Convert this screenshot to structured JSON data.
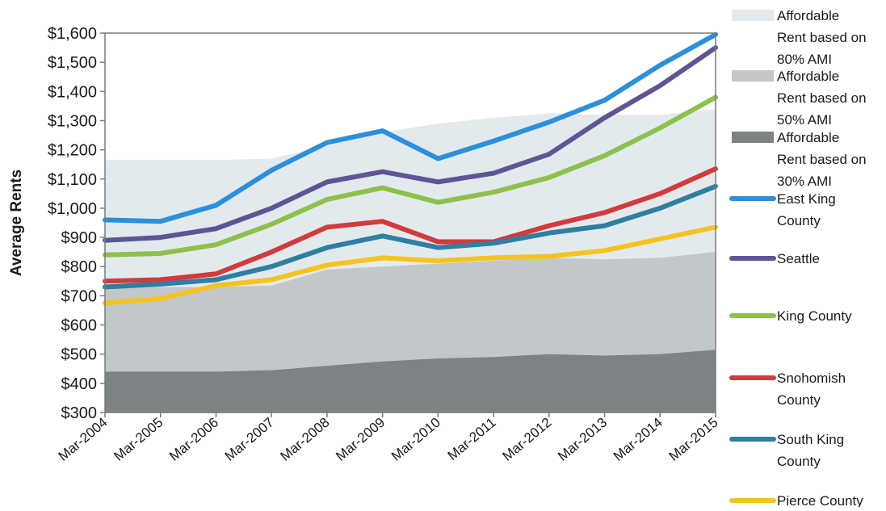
{
  "chart_data": {
    "type": "line",
    "title": "",
    "xlabel": "",
    "ylabel": "Average Rents",
    "ylim": [
      300,
      1600
    ],
    "ytick_labels": [
      "$300",
      "$400",
      "$500",
      "$600",
      "$700",
      "$800",
      "$900",
      "$1,000",
      "$1,100",
      "$1,200",
      "$1,300",
      "$1,400",
      "$1,500",
      "$1,600"
    ],
    "yticks": [
      300,
      400,
      500,
      600,
      700,
      800,
      900,
      1000,
      1100,
      1200,
      1300,
      1400,
      1500,
      1600
    ],
    "categories": [
      "Mar-2004",
      "Mar-2005",
      "Mar-2006",
      "Mar-2007",
      "Mar-2008",
      "Mar-2009",
      "Mar-2010",
      "Mar-2011",
      "Mar-2012",
      "Mar-2013",
      "Mar-2014",
      "Mar-2015"
    ],
    "grid": false,
    "legend_position": "right",
    "areas": [
      {
        "name": "Affordable Rent based on 80% AMI",
        "legend_lines": [
          "Affordable",
          "Rent based on",
          "80% AMI"
        ],
        "color": "#e3eaee",
        "values": [
          1165,
          1165,
          1165,
          1170,
          1215,
          1260,
          1290,
          1310,
          1325,
          1320,
          1320,
          1340
        ]
      },
      {
        "name": "Affordable Rent based on 50% AMI",
        "legend_lines": [
          "Affordable",
          "Rent based on",
          "50% AMI"
        ],
        "color": "#c2c7ca",
        "values": [
          730,
          730,
          730,
          735,
          790,
          800,
          810,
          820,
          830,
          825,
          830,
          850
        ]
      },
      {
        "name": "Affordable Rent based on 30% AMI",
        "legend_lines": [
          "Affordable",
          "Rent based on",
          "30% AMI"
        ],
        "color": "#7d8384",
        "values": [
          440,
          440,
          440,
          445,
          460,
          475,
          485,
          490,
          500,
          495,
          500,
          515
        ]
      }
    ],
    "series": [
      {
        "name": "East King County",
        "legend_lines": [
          "East King",
          "County"
        ],
        "color": "#2b8fdc",
        "values": [
          960,
          955,
          1010,
          1130,
          1225,
          1265,
          1170,
          1230,
          1295,
          1370,
          1490,
          1595
        ]
      },
      {
        "name": "Seattle",
        "legend_lines": [
          "Seattle"
        ],
        "color": "#5e5596",
        "values": [
          890,
          900,
          930,
          1000,
          1090,
          1125,
          1090,
          1120,
          1185,
          1310,
          1420,
          1550
        ]
      },
      {
        "name": "King County",
        "legend_lines": [
          "King County"
        ],
        "color": "#8dc14b",
        "values": [
          840,
          845,
          875,
          945,
          1030,
          1070,
          1020,
          1055,
          1105,
          1180,
          1275,
          1380
        ]
      },
      {
        "name": "Snohomish County",
        "legend_lines": [
          "Snohomish",
          "County"
        ],
        "color": "#d23a3b",
        "values": [
          750,
          755,
          775,
          850,
          935,
          955,
          885,
          885,
          940,
          985,
          1050,
          1135
        ]
      },
      {
        "name": "South King County",
        "legend_lines": [
          "South King",
          "County"
        ],
        "color": "#2e7fa1",
        "values": [
          730,
          740,
          755,
          800,
          865,
          905,
          865,
          880,
          915,
          940,
          1000,
          1075
        ]
      },
      {
        "name": "Pierce County",
        "legend_lines": [
          "Pierce County"
        ],
        "color": "#f5c31f",
        "values": [
          675,
          690,
          735,
          755,
          805,
          830,
          820,
          830,
          835,
          855,
          895,
          935
        ]
      }
    ]
  }
}
